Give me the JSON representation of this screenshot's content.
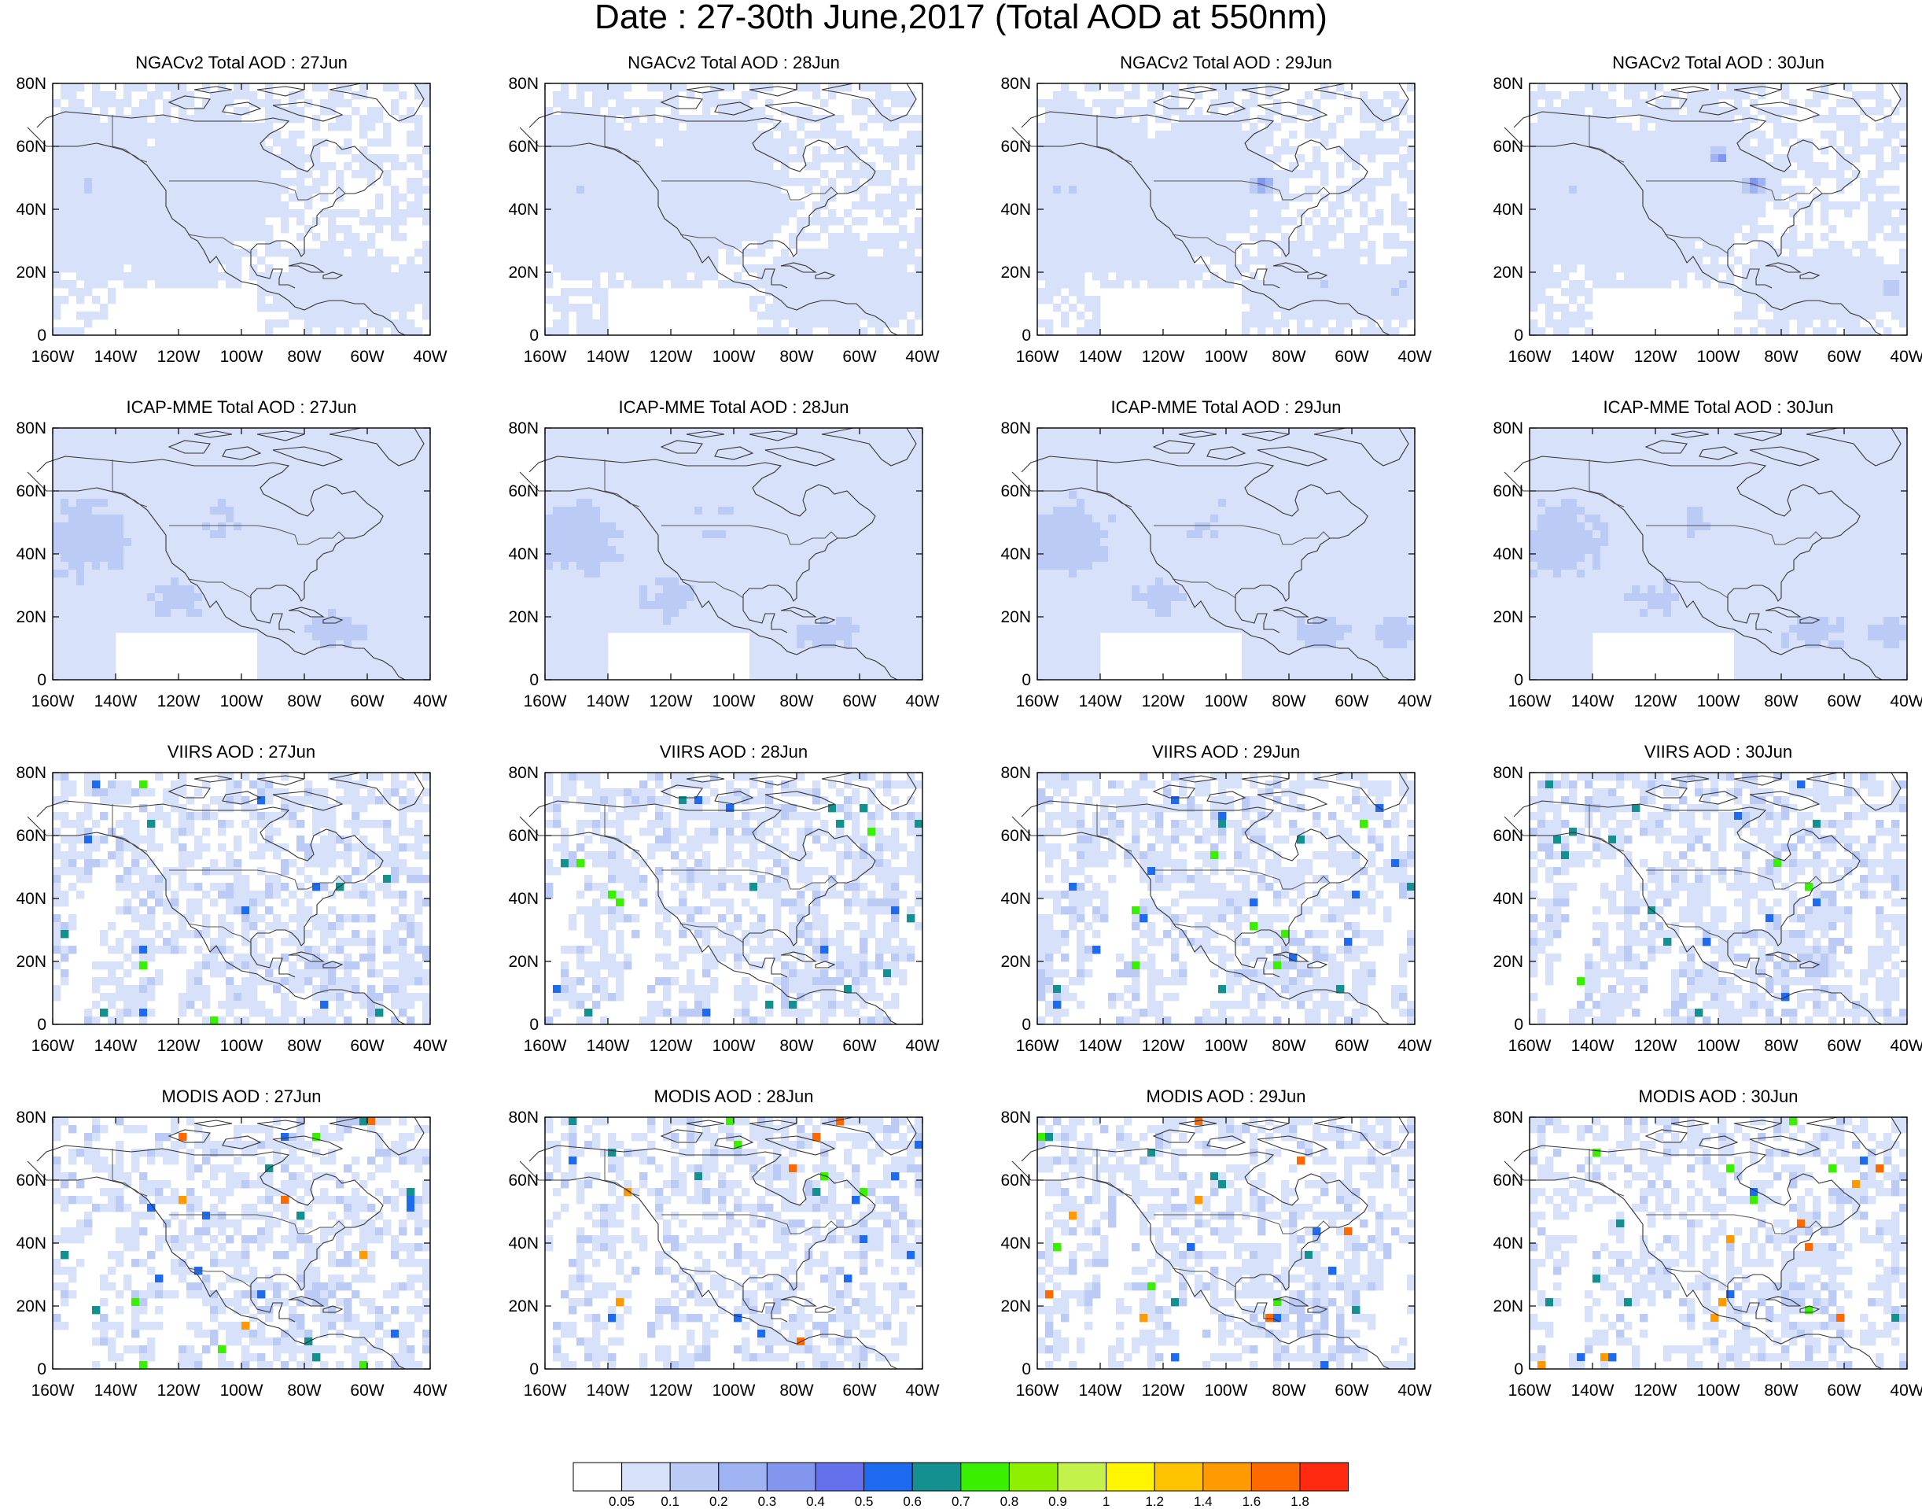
{
  "title": "Date : 27-30th June,2017 (Total AOD at 550nm)",
  "lat_ticks": [
    "80N",
    "60N",
    "40N",
    "20N",
    "0"
  ],
  "lon_ticks": [
    "160W",
    "140W",
    "120W",
    "100W",
    "80W",
    "60W",
    "40W"
  ],
  "rows": [
    {
      "product": "NGACv2",
      "panels": [
        {
          "title": "NGACv2 Total AOD : 27Jun"
        },
        {
          "title": "NGACv2 Total AOD : 28Jun"
        },
        {
          "title": "NGACv2 Total AOD : 29Jun"
        },
        {
          "title": "NGACv2 Total AOD : 30Jun"
        }
      ]
    },
    {
      "product": "ICAP-MME",
      "panels": [
        {
          "title": "ICAP-MME Total AOD : 27Jun"
        },
        {
          "title": "ICAP-MME Total AOD : 28Jun"
        },
        {
          "title": "ICAP-MME Total AOD : 29Jun"
        },
        {
          "title": "ICAP-MME Total AOD : 30Jun"
        }
      ]
    },
    {
      "product": "VIIRS",
      "panels": [
        {
          "title": "VIIRS AOD : 27Jun"
        },
        {
          "title": "VIIRS AOD : 28Jun"
        },
        {
          "title": "VIIRS AOD : 29Jun"
        },
        {
          "title": "VIIRS AOD : 30Jun"
        }
      ]
    },
    {
      "product": "MODIS",
      "panels": [
        {
          "title": "MODIS AOD : 27Jun"
        },
        {
          "title": "MODIS AOD : 28Jun"
        },
        {
          "title": "MODIS AOD : 29Jun"
        },
        {
          "title": "MODIS AOD : 30Jun"
        }
      ]
    }
  ],
  "colorbar": {
    "labels": [
      "0.05",
      "0.1",
      "0.2",
      "0.3",
      "0.4",
      "0.5",
      "0.6",
      "0.7",
      "0.8",
      "0.9",
      "1",
      "1.2",
      "1.4",
      "1.6",
      "1.8"
    ],
    "colors": [
      "#ffffff",
      "#d8e1fa",
      "#bccbf6",
      "#9fb2f2",
      "#8296ee",
      "#6470ec",
      "#1f6bf0",
      "#149090",
      "#3aef00",
      "#8ef000",
      "#c4f24a",
      "#fff500",
      "#ffc200",
      "#ff9a00",
      "#ff6a00",
      "#ff2a10"
    ]
  }
}
